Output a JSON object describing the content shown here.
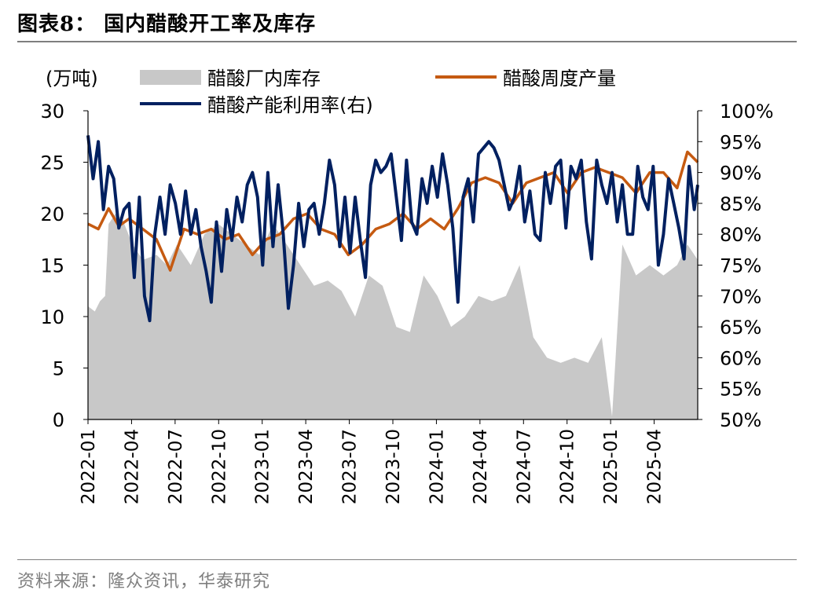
{
  "figure": {
    "title": "图表8：  国内醋酸开工率及库存",
    "source": "资料来源：隆众资讯，华泰研究"
  },
  "chart_data": {
    "type": "area+line",
    "left_unit": "(万吨)",
    "left_axis": {
      "ylim": [
        0,
        30
      ],
      "ticks": [
        "0",
        "5",
        "10",
        "15",
        "20",
        "25",
        "30"
      ]
    },
    "right_axis": {
      "ylim": [
        50,
        100
      ],
      "ticks": [
        "50%",
        "55%",
        "60%",
        "65%",
        "70%",
        "75%",
        "80%",
        "85%",
        "90%",
        "95%",
        "100%"
      ]
    },
    "x_ticks": [
      "2022-01",
      "2022-04",
      "2022-07",
      "2022-10",
      "2023-01",
      "2023-04",
      "2023-07",
      "2023-10",
      "2024-01",
      "2024-04",
      "2024-07",
      "2024-10",
      "2025-01",
      "2025-04"
    ],
    "x_range_months": [
      0,
      17.8
    ],
    "legend": [
      "醋酸厂内库存",
      "醋酸周度产量",
      "醋酸产能利用率(右)"
    ],
    "colors": {
      "inventory": "#c8c8c8",
      "output": "#c55a11",
      "utilization": "#002060",
      "axis": "#000000"
    },
    "series": [
      {
        "name": "醋酸厂内库存",
        "axis": "left",
        "kind": "area",
        "x": [
          0,
          0.2,
          0.35,
          0.5,
          0.6,
          0.8,
          1.0,
          1.3,
          1.6,
          2.0,
          2.3,
          2.6,
          3.0,
          3.4,
          3.8,
          4.2,
          4.6,
          5.0,
          5.4,
          5.8,
          6.2,
          6.6,
          7.0,
          7.4,
          7.8,
          8.2,
          8.6,
          9.0,
          9.4,
          9.8,
          10.2,
          10.6,
          11.0,
          11.4,
          11.8,
          12.2,
          12.6,
          13.0,
          13.4,
          13.8,
          14.2,
          14.6,
          15.0,
          15.3,
          15.6,
          16.0,
          16.4,
          16.8,
          17.2,
          17.5,
          17.8
        ],
        "values": [
          11,
          10.5,
          11.5,
          12,
          19,
          20,
          19.5,
          17,
          15.5,
          16,
          15,
          17,
          15,
          18,
          19,
          18,
          17,
          16,
          19,
          17,
          15,
          13,
          13.5,
          12.5,
          10,
          14,
          13,
          9,
          8.5,
          14,
          12,
          9,
          10,
          12,
          11.5,
          12,
          15,
          8,
          6,
          5.5,
          6,
          5.5,
          8,
          0.3,
          17,
          14,
          15,
          14,
          15,
          17,
          15.5
        ]
      },
      {
        "name": "醋酸周度产量",
        "axis": "left",
        "kind": "line",
        "x": [
          0,
          0.3,
          0.6,
          0.9,
          1.2,
          1.6,
          2.0,
          2.4,
          2.8,
          3.2,
          3.6,
          4.0,
          4.4,
          4.8,
          5.2,
          5.6,
          6.0,
          6.4,
          6.8,
          7.2,
          7.6,
          8.0,
          8.4,
          8.8,
          9.2,
          9.6,
          10.0,
          10.4,
          10.8,
          11.2,
          11.6,
          12.0,
          12.4,
          12.8,
          13.2,
          13.6,
          14.0,
          14.4,
          14.8,
          15.2,
          15.6,
          16.0,
          16.4,
          16.8,
          17.2,
          17.5,
          17.8
        ],
        "values": [
          19,
          18.5,
          20.5,
          18.8,
          19.5,
          18.5,
          17.5,
          14.5,
          18.5,
          18,
          18.5,
          17.5,
          18,
          16,
          17.5,
          18,
          19.5,
          20,
          18.5,
          18,
          16,
          17,
          18.5,
          19,
          20,
          18.5,
          19.5,
          18.5,
          20.5,
          23,
          23.5,
          23,
          21,
          23,
          23.5,
          24,
          22,
          24,
          24.5,
          24,
          23.5,
          22,
          24,
          24,
          22.5,
          26,
          25
        ]
      },
      {
        "name": "醋酸产能利用率(右)",
        "axis": "right",
        "kind": "line",
        "x": [
          0,
          0.15,
          0.3,
          0.45,
          0.6,
          0.75,
          0.9,
          1.05,
          1.2,
          1.35,
          1.5,
          1.65,
          1.8,
          1.95,
          2.1,
          2.25,
          2.4,
          2.55,
          2.7,
          2.85,
          3.0,
          3.15,
          3.3,
          3.45,
          3.6,
          3.75,
          3.9,
          4.05,
          4.2,
          4.35,
          4.5,
          4.65,
          4.8,
          4.95,
          5.1,
          5.25,
          5.4,
          5.55,
          5.7,
          5.85,
          6.0,
          6.15,
          6.3,
          6.45,
          6.6,
          6.75,
          6.9,
          7.05,
          7.2,
          7.35,
          7.5,
          7.65,
          7.8,
          7.95,
          8.1,
          8.25,
          8.4,
          8.55,
          8.7,
          8.85,
          9.0,
          9.15,
          9.3,
          9.45,
          9.6,
          9.75,
          9.9,
          10.05,
          10.2,
          10.35,
          10.5,
          10.65,
          10.8,
          10.95,
          11.1,
          11.25,
          11.4,
          11.55,
          11.7,
          11.85,
          12.0,
          12.15,
          12.3,
          12.45,
          12.6,
          12.75,
          12.9,
          13.05,
          13.2,
          13.35,
          13.5,
          13.65,
          13.8,
          13.95,
          14.1,
          14.25,
          14.4,
          14.55,
          14.7,
          14.85,
          15.0,
          15.15,
          15.3,
          15.45,
          15.6,
          15.75,
          15.9,
          16.05,
          16.2,
          16.35,
          16.5,
          16.65,
          16.8,
          16.95,
          17.1,
          17.25,
          17.4,
          17.55,
          17.7,
          17.8
        ],
        "values": [
          96,
          89,
          95,
          84,
          91,
          89,
          81,
          84,
          85,
          73,
          86,
          70,
          66,
          80,
          86,
          80,
          88,
          85,
          80,
          87,
          80,
          84,
          78,
          74,
          69,
          82,
          74,
          84,
          79,
          86,
          82,
          88,
          90,
          86,
          75,
          90,
          78,
          88,
          80,
          68,
          75,
          85,
          78,
          84,
          85,
          80,
          85,
          92,
          88,
          78,
          86,
          77,
          86,
          79,
          73,
          88,
          92,
          90,
          91,
          93,
          86,
          79,
          92,
          82,
          80,
          89,
          85,
          91,
          86,
          93,
          88,
          81,
          69,
          86,
          89,
          82,
          93,
          94,
          95,
          94,
          92,
          88,
          84,
          86,
          91,
          82,
          87,
          80,
          79,
          90,
          85,
          91,
          92,
          81,
          91,
          89,
          92,
          82,
          76,
          92,
          88,
          85,
          90,
          82,
          88,
          80,
          80,
          91,
          86,
          84,
          91,
          75,
          80,
          89,
          85,
          81,
          76,
          91,
          84,
          88
        ]
      }
    ]
  }
}
